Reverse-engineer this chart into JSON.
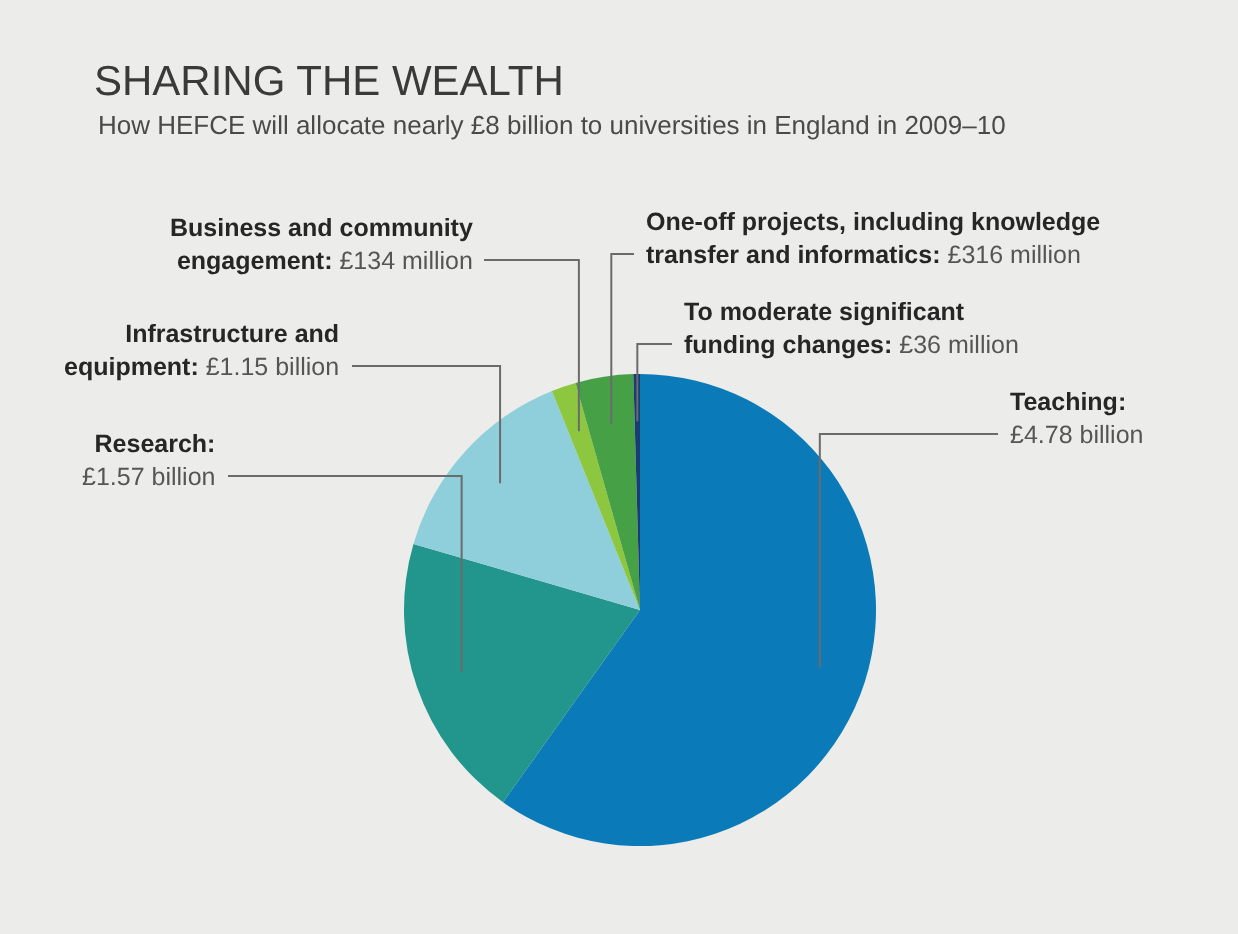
{
  "chart_data": {
    "type": "pie",
    "title": "SHARING THE WEALTH",
    "subtitle": "How HEFCE will allocate nearly £8 billion to universities in England in 2009–10",
    "categories": [
      "Teaching: £4.78 billion",
      "Research: £1.57 billion",
      "Infrastructure and equipment: £1.15 billion",
      "Business and community engagement: £134 million",
      "One-off projects, including knowledge transfer and informatics: £316 million",
      "To moderate significant funding changes: £36 million"
    ],
    "values": [
      4.78,
      1.57,
      1.15,
      0.134,
      0.316,
      0.036
    ],
    "colors": [
      "#0b7ab8",
      "#22968c",
      "#8fcfdb",
      "#8dc63f",
      "#46a046",
      "#1b3c6e"
    ]
  }
}
